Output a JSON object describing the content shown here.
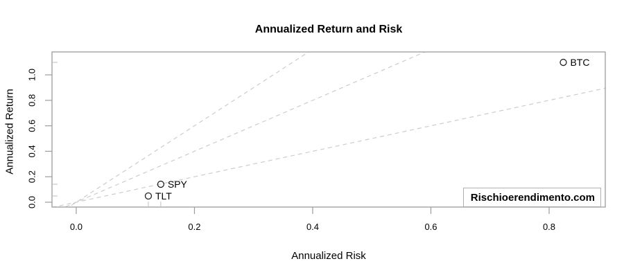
{
  "chart": {
    "title": "Annualized Return and Risk",
    "x_axis_label": "Annualized Risk",
    "y_axis_label": "Annualized Return",
    "watermark": "Rischioerendimento.com"
  },
  "chart_data": {
    "type": "scatter",
    "title": "Annualized Return and Risk",
    "xlabel": "Annualized Risk",
    "ylabel": "Annualized Return",
    "xlim": [
      -0.041,
      0.895
    ],
    "ylim": [
      -0.038,
      1.18
    ],
    "xticks": [
      0.0,
      0.2,
      0.4,
      0.6,
      0.8
    ],
    "yticks": [
      0.0,
      0.2,
      0.4,
      0.6,
      0.8,
      1.0
    ],
    "grid": false,
    "legend_position": "none",
    "points": [
      {
        "label": "BTC",
        "x": 0.824,
        "y": 1.098
      },
      {
        "label": "SPY",
        "x": 0.143,
        "y": 0.141
      },
      {
        "label": "TLT",
        "x": 0.122,
        "y": 0.049
      }
    ],
    "reference_lines": [
      {
        "name": "slope-1",
        "slope": 1,
        "intercept": 0,
        "style": "dashed"
      },
      {
        "name": "slope-2",
        "slope": 2,
        "intercept": 0,
        "style": "dashed"
      },
      {
        "name": "slope-3",
        "slope": 3,
        "intercept": 0,
        "style": "dashed"
      }
    ],
    "rug_marks": {
      "x": [
        0.122,
        0.143,
        0.824
      ],
      "y": [
        0.049,
        0.141,
        1.098
      ]
    },
    "watermark": "Rischioerendimento.com",
    "colors": {
      "background": "#ffffff",
      "axis": "#9b9b9b",
      "tick_label": "#000000",
      "reference_line": "#cccccc",
      "rug": "#c9c9c9",
      "point_stroke": "#222222",
      "point_label": "#000000"
    }
  }
}
